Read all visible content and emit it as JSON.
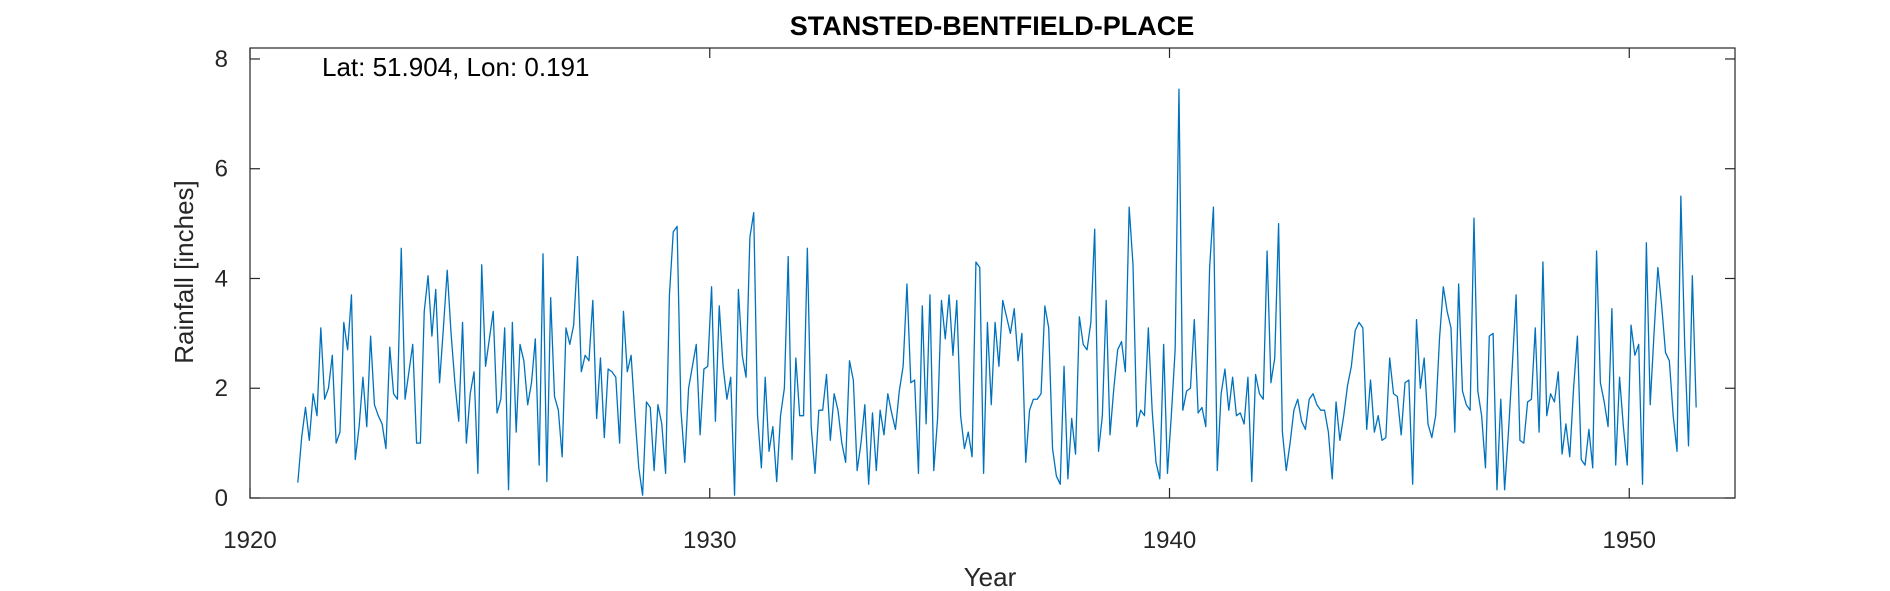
{
  "chart_data": {
    "type": "line",
    "title": "STANSTED-BENTFIELD-PLACE",
    "xlabel": "Year",
    "ylabel": "Rainfall [inches]",
    "annotation": "Lat: 51.904, Lon: 0.191",
    "xlim": [
      1920,
      1952.3
    ],
    "ylim": [
      0,
      8.2
    ],
    "xticks": [
      1920,
      1930,
      1940,
      1950
    ],
    "yticks": [
      0,
      2,
      4,
      6,
      8
    ],
    "grid": false,
    "line_color": "#0072BD",
    "series": [
      {
        "x_start": 1921.04,
        "x_step": 0.08333,
        "values": [
          0.28,
          1.1,
          1.65,
          1.05,
          1.9,
          1.5,
          3.1,
          1.8,
          2.0,
          2.6,
          1.0,
          1.2,
          3.2,
          2.7,
          3.7,
          0.7,
          1.3,
          2.2,
          1.3,
          2.95,
          1.7,
          1.5,
          1.35,
          0.9,
          2.75,
          1.9,
          1.8,
          4.55,
          1.8,
          2.3,
          2.8,
          1.0,
          1.0,
          3.4,
          4.05,
          2.95,
          3.8,
          2.1,
          3.1,
          4.15,
          3.0,
          2.1,
          1.4,
          3.2,
          1.0,
          1.9,
          2.3,
          0.45,
          4.25,
          2.4,
          2.9,
          3.4,
          1.55,
          1.8,
          3.1,
          0.15,
          3.2,
          1.2,
          2.8,
          2.5,
          1.7,
          2.1,
          2.9,
          0.6,
          4.45,
          0.3,
          3.65,
          1.85,
          1.6,
          0.75,
          3.1,
          2.8,
          3.15,
          4.4,
          2.3,
          2.6,
          2.5,
          3.6,
          1.45,
          2.55,
          1.1,
          2.35,
          2.3,
          2.2,
          1.0,
          3.4,
          2.3,
          2.6,
          1.5,
          0.55,
          0.05,
          1.75,
          1.65,
          0.5,
          1.7,
          1.35,
          0.45,
          3.7,
          4.85,
          4.95,
          1.6,
          0.65,
          2.0,
          2.4,
          2.8,
          1.15,
          2.35,
          2.4,
          3.85,
          1.4,
          3.5,
          2.4,
          1.8,
          2.2,
          0.05,
          3.8,
          2.6,
          2.2,
          4.75,
          5.2,
          1.5,
          0.55,
          2.2,
          0.85,
          1.3,
          0.3,
          1.5,
          2.0,
          4.4,
          0.7,
          2.55,
          1.5,
          1.5,
          4.55,
          1.3,
          0.45,
          1.6,
          1.6,
          2.25,
          1.05,
          1.9,
          1.6,
          1.0,
          0.65,
          2.5,
          2.15,
          0.5,
          1.0,
          1.7,
          0.25,
          1.55,
          0.5,
          1.6,
          1.15,
          1.9,
          1.55,
          1.25,
          1.95,
          2.4,
          3.9,
          2.1,
          2.15,
          0.45,
          3.5,
          1.35,
          3.7,
          0.5,
          1.45,
          3.6,
          2.9,
          3.7,
          2.6,
          3.6,
          1.5,
          0.9,
          1.2,
          0.75,
          4.3,
          4.2,
          0.45,
          3.2,
          1.7,
          3.2,
          2.4,
          3.6,
          3.3,
          3.0,
          3.45,
          2.5,
          3.0,
          0.65,
          1.6,
          1.8,
          1.8,
          1.9,
          3.5,
          3.1,
          0.9,
          0.4,
          0.25,
          2.4,
          0.35,
          1.45,
          0.8,
          3.3,
          2.8,
          2.7,
          3.2,
          4.9,
          0.85,
          1.5,
          3.6,
          1.15,
          2.0,
          2.7,
          2.85,
          2.3,
          5.3,
          4.25,
          1.3,
          1.6,
          1.5,
          3.1,
          1.6,
          0.65,
          0.35,
          2.8,
          0.45,
          1.5,
          2.7,
          7.45,
          1.6,
          1.95,
          2.0,
          3.25,
          1.55,
          1.65,
          1.3,
          4.2,
          5.3,
          0.5,
          1.9,
          2.35,
          1.6,
          2.2,
          1.5,
          1.55,
          1.35,
          2.2,
          0.3,
          2.25,
          1.9,
          1.8,
          4.5,
          2.1,
          2.55,
          5.0,
          1.2,
          0.5,
          1.0,
          1.6,
          1.8,
          1.4,
          1.25,
          1.8,
          1.9,
          1.7,
          1.6,
          1.6,
          1.2,
          0.35,
          1.75,
          1.05,
          1.5,
          2.05,
          2.4,
          3.05,
          3.2,
          3.1,
          1.25,
          2.15,
          1.2,
          1.5,
          1.05,
          1.1,
          2.55,
          1.9,
          1.85,
          1.15,
          2.1,
          2.15,
          0.25,
          3.25,
          2.0,
          2.55,
          1.35,
          1.1,
          1.5,
          2.9,
          3.85,
          3.4,
          3.1,
          1.2,
          3.9,
          1.95,
          1.7,
          1.6,
          5.1,
          1.95,
          1.5,
          0.55,
          2.95,
          3.0,
          0.15,
          1.8,
          0.15,
          1.2,
          2.4,
          3.7,
          1.05,
          1.0,
          1.75,
          1.8,
          3.1,
          1.2,
          4.3,
          1.5,
          1.9,
          1.75,
          2.3,
          0.8,
          1.35,
          0.75,
          2.0,
          2.95,
          0.7,
          0.6,
          1.25,
          0.55,
          4.5,
          2.1,
          1.75,
          1.3,
          3.45,
          0.6,
          2.2,
          1.3,
          0.6,
          3.15,
          2.6,
          2.8,
          0.25,
          4.65,
          1.7,
          3.0,
          4.2,
          3.5,
          2.65,
          2.5,
          1.5,
          0.85,
          5.5,
          2.8,
          0.95,
          4.05,
          1.65
        ]
      }
    ]
  }
}
